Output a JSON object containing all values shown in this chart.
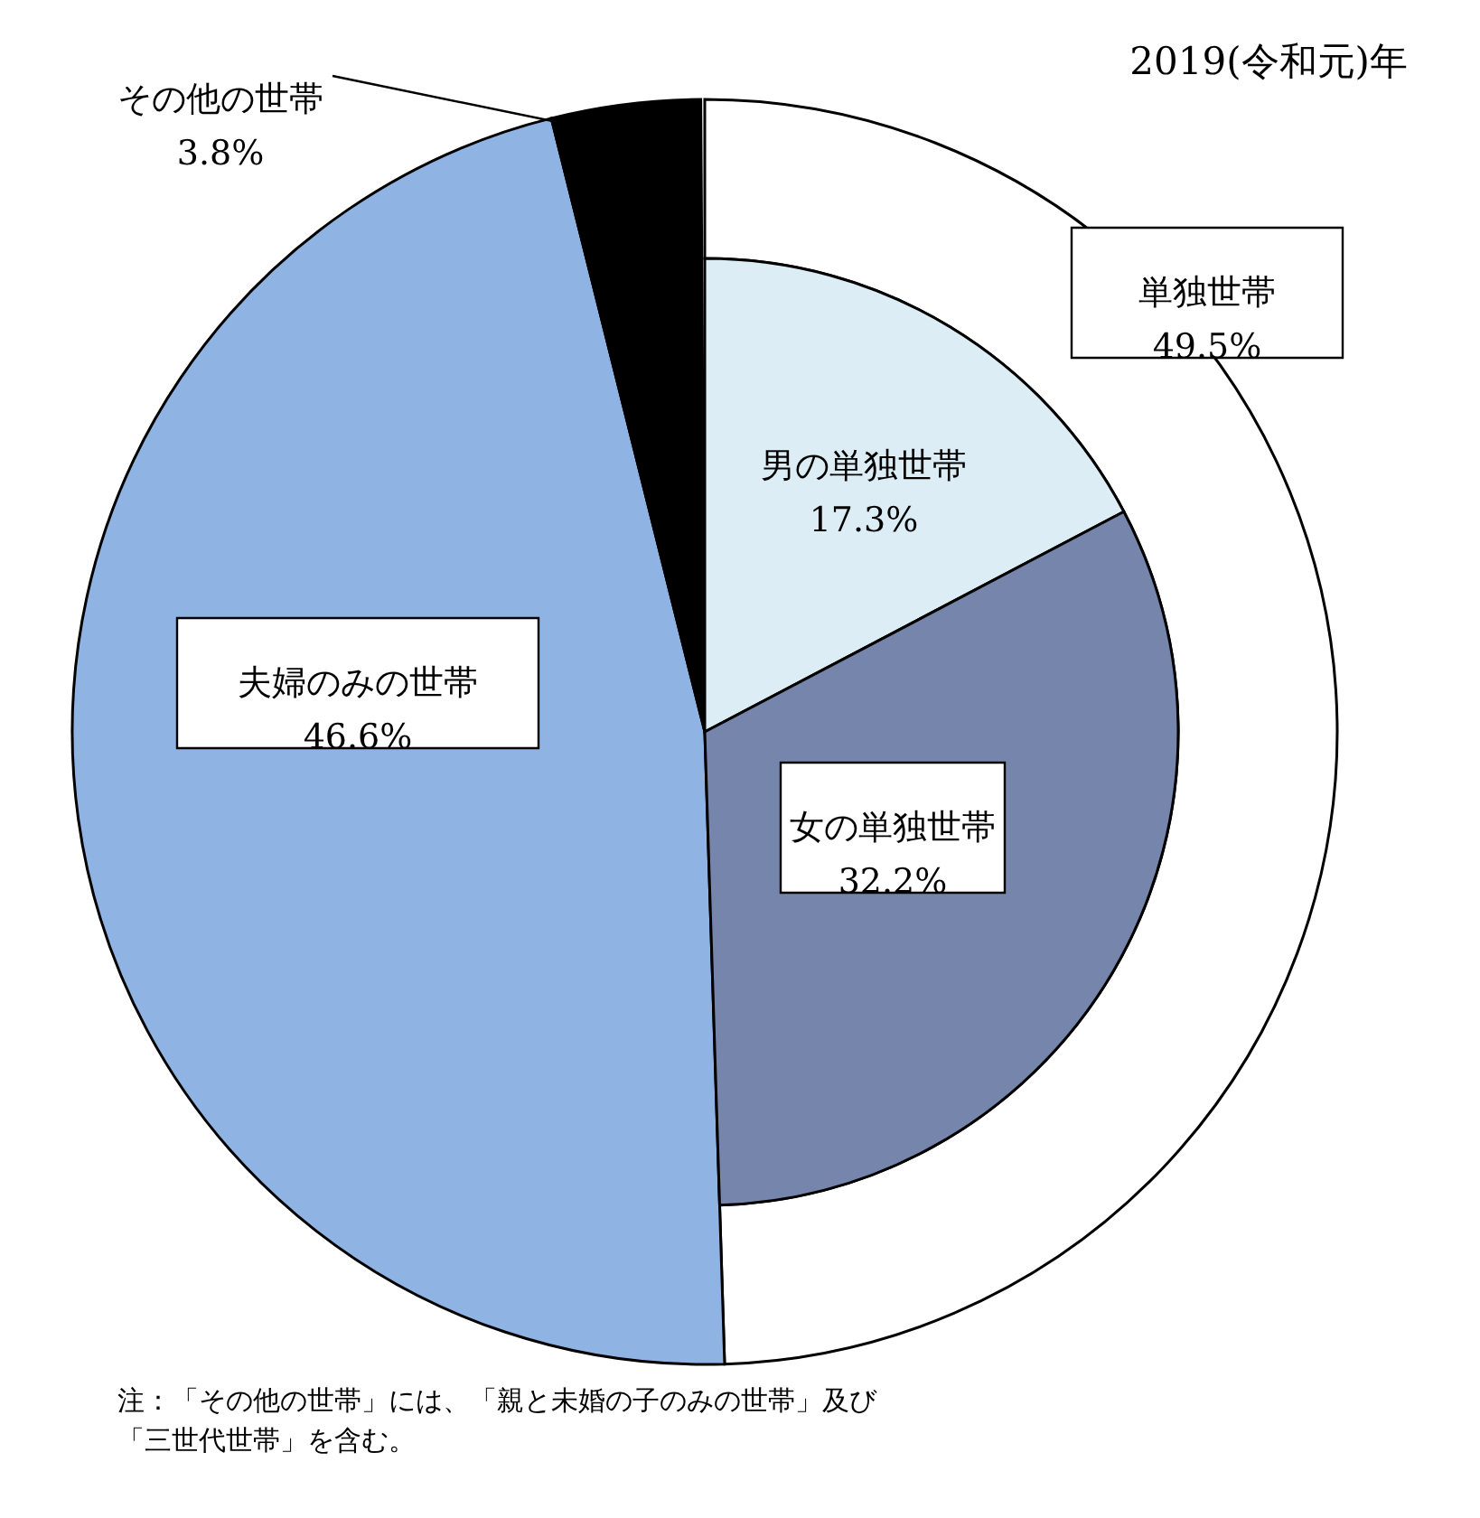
{
  "chart_data": [
    {
      "type": "pie",
      "title": "2019(令和元)年",
      "categories": [
        "単独世帯",
        "夫婦のみの世帯",
        "その他の世帯"
      ],
      "values": [
        49.5,
        46.6,
        3.8
      ],
      "colors": [
        "#ffffff",
        "#8fb4e3",
        "#000000"
      ],
      "value_labels": [
        "49.5%",
        "46.6%",
        "3.8%"
      ],
      "annotations": [
        "注：「その他の世帯」には、「親と未婚の子のみの世帯」及び",
        "「三世代世帯」を含む。"
      ]
    },
    {
      "type": "pie",
      "categories": [
        "男の単独世帯",
        "女の単独世帯"
      ],
      "values": [
        17.3,
        32.2
      ],
      "colors": [
        "#dcedf6",
        "#7585ab"
      ],
      "value_labels": [
        "17.3%",
        "32.2%"
      ]
    }
  ]
}
